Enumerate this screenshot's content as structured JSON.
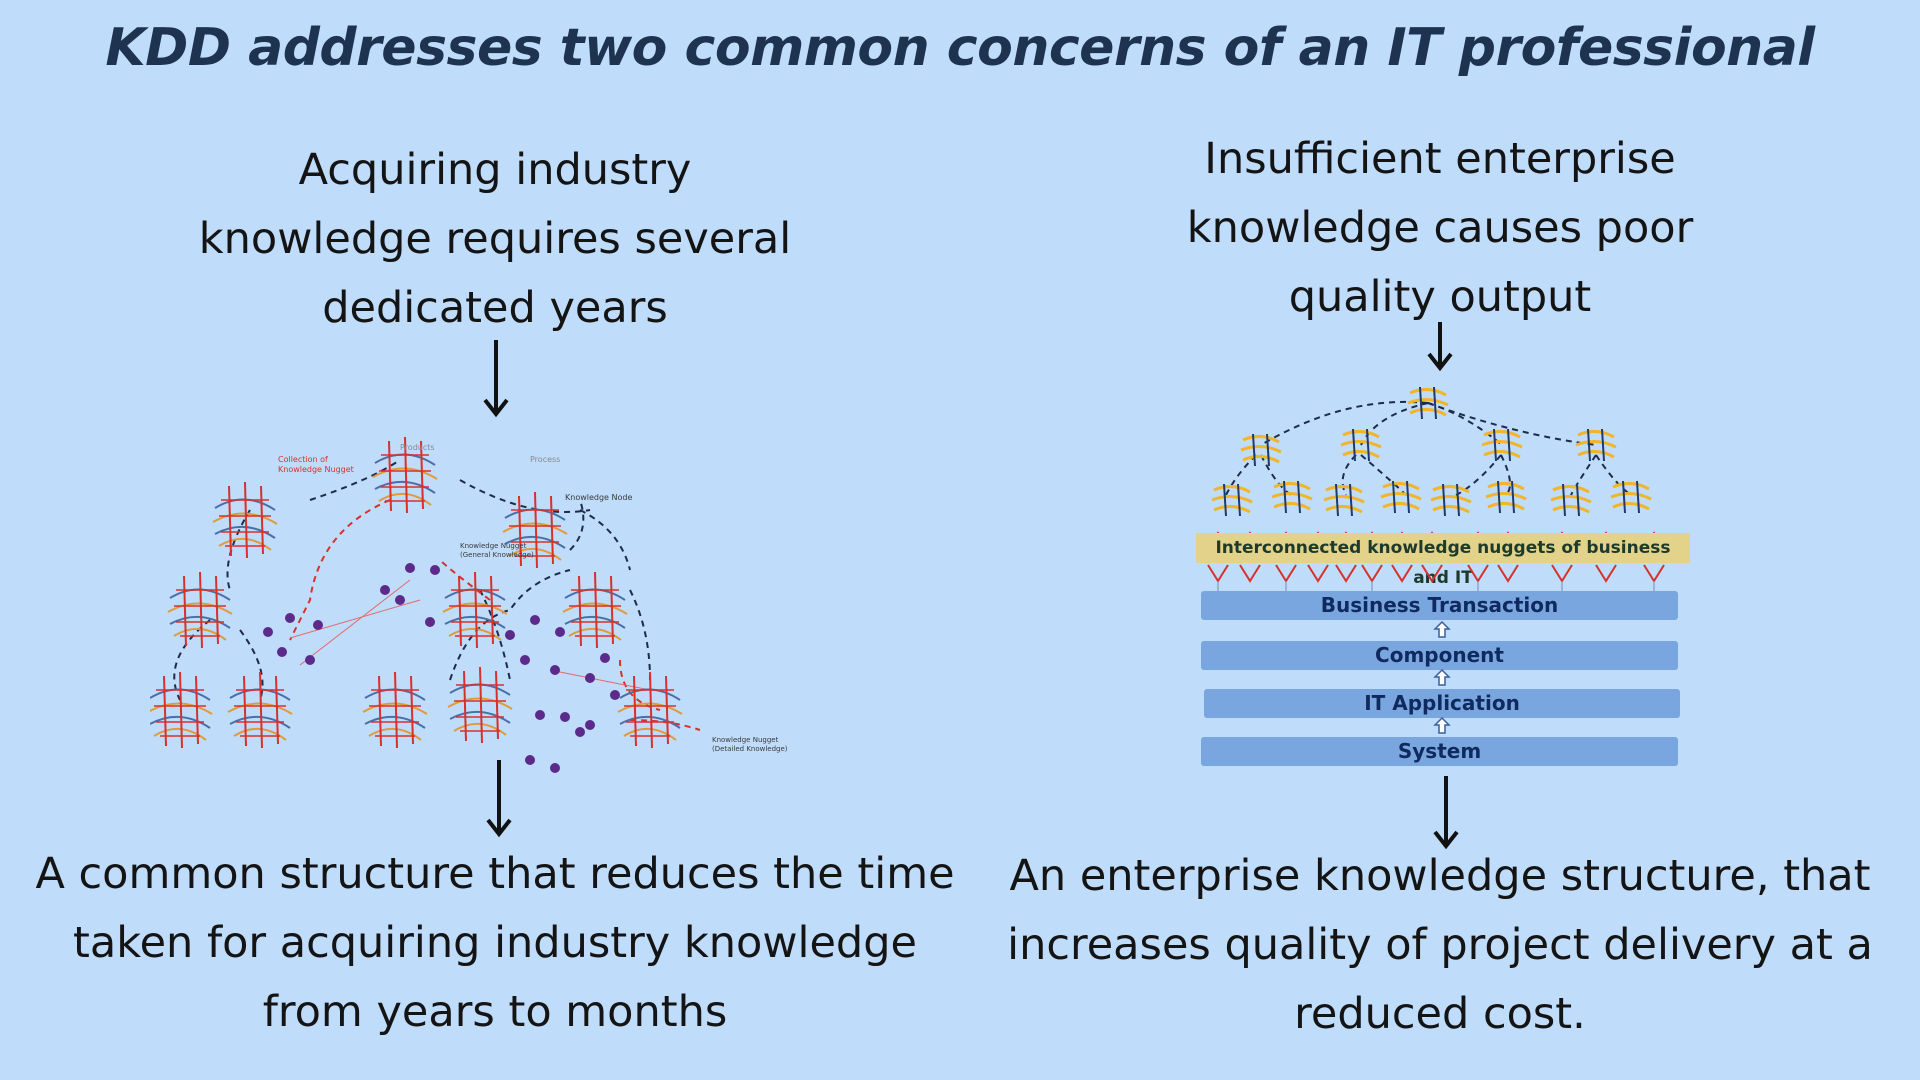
{
  "title": "KDD addresses two common concerns of an IT professional",
  "left": {
    "problem_lines": [
      "Acquiring industry",
      "knowledge requires several",
      "dedicated years"
    ],
    "solution_lines": [
      "A common structure that reduces the time",
      "taken for acquiring industry knowledge",
      "from years to months"
    ],
    "diagram_labels": {
      "collection": "Collection of",
      "collection2": "Knowledge Nugget",
      "products": "Products",
      "process": "Process",
      "knowledge_node": "Knowledge Node",
      "general_nugget": "Knowledge Nugget",
      "general_nugget2": "(General Knowledge)",
      "detailed_nugget": "Knowledge Nugget",
      "detailed_nugget2": "(Detailed Knowledge)"
    }
  },
  "right": {
    "problem_lines": [
      "Insufficient enterprise",
      "knowledge causes poor",
      "quality output"
    ],
    "solution_lines": [
      "An enterprise knowledge structure, that",
      "increases quality of project delivery at a",
      "reduced cost."
    ],
    "band_label": "Interconnected knowledge nuggets of business and IT",
    "layers": [
      "Business Transaction",
      "Component",
      "IT Application",
      "System"
    ]
  },
  "colors": {
    "background": "#bfdcfb",
    "title": "#1e3350",
    "layer_bar": "#7aa6e0",
    "band": "#e3d38a"
  }
}
